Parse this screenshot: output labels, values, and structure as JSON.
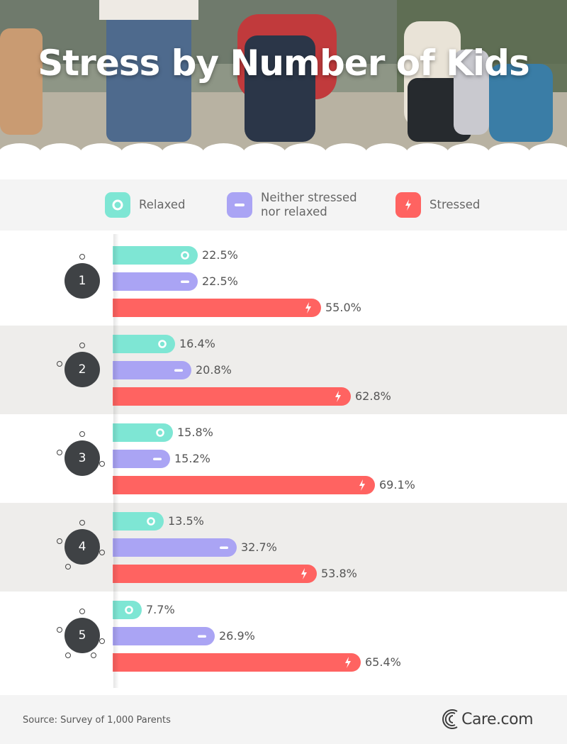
{
  "title": "Stress by Number of Kids",
  "legend": {
    "relaxed": "Relaxed",
    "neither_line1": "Neither stressed",
    "neither_line2": "nor relaxed",
    "stressed": "Stressed"
  },
  "colors": {
    "relaxed": "#7ee6d4",
    "neither": "#aaa4f4",
    "stressed": "#ff6361",
    "circle": "#3f4245",
    "shade": "#eeedeb"
  },
  "icons": {
    "relaxed": "ring-icon",
    "neither": "dash-icon",
    "stressed": "lightning-icon"
  },
  "chart_data": {
    "type": "bar",
    "categories": [
      "1",
      "2",
      "3",
      "4",
      "5"
    ],
    "series": [
      {
        "name": "Relaxed",
        "values": [
          22.5,
          16.4,
          15.8,
          13.5,
          7.7
        ],
        "labels": [
          "22.5%",
          "16.4%",
          "15.8%",
          "13.5%",
          "7.7%"
        ]
      },
      {
        "name": "Neither stressed nor relaxed",
        "values": [
          22.5,
          20.8,
          15.2,
          32.7,
          26.9
        ],
        "labels": [
          "22.5%",
          "20.8%",
          "15.2%",
          "32.7%",
          "26.9%"
        ]
      },
      {
        "name": "Stressed",
        "values": [
          55.0,
          62.8,
          69.1,
          53.8,
          65.4
        ],
        "labels": [
          "55.0%",
          "62.8%",
          "69.1%",
          "53.8%",
          "65.4%"
        ]
      }
    ],
    "orientation": "horizontal",
    "legend": "top"
  },
  "footer": {
    "source": "Source: Survey of 1,000 Parents",
    "brand": "Care.com"
  }
}
